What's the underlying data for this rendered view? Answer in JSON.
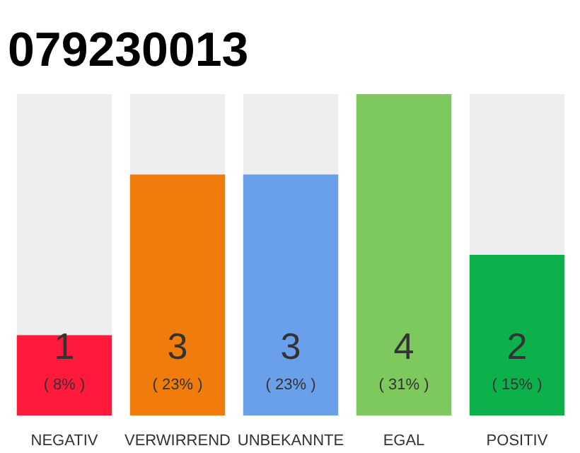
{
  "chart_data": {
    "type": "bar",
    "title": "079230013",
    "categories": [
      "NEGATIV",
      "VERWIRREND",
      "UNBEKANNTE",
      "EGAL",
      "POSITIV"
    ],
    "values": [
      1,
      3,
      3,
      4,
      2
    ],
    "colors": [
      "#ff1a3c",
      "#f07c0c",
      "#6a9fea",
      "#7dc95e",
      "#0db14b"
    ],
    "data_labels": true,
    "annotations": [
      "( 8% )",
      "( 23% )",
      "( 23% )",
      "( 31% )",
      "( 15% )"
    ]
  }
}
